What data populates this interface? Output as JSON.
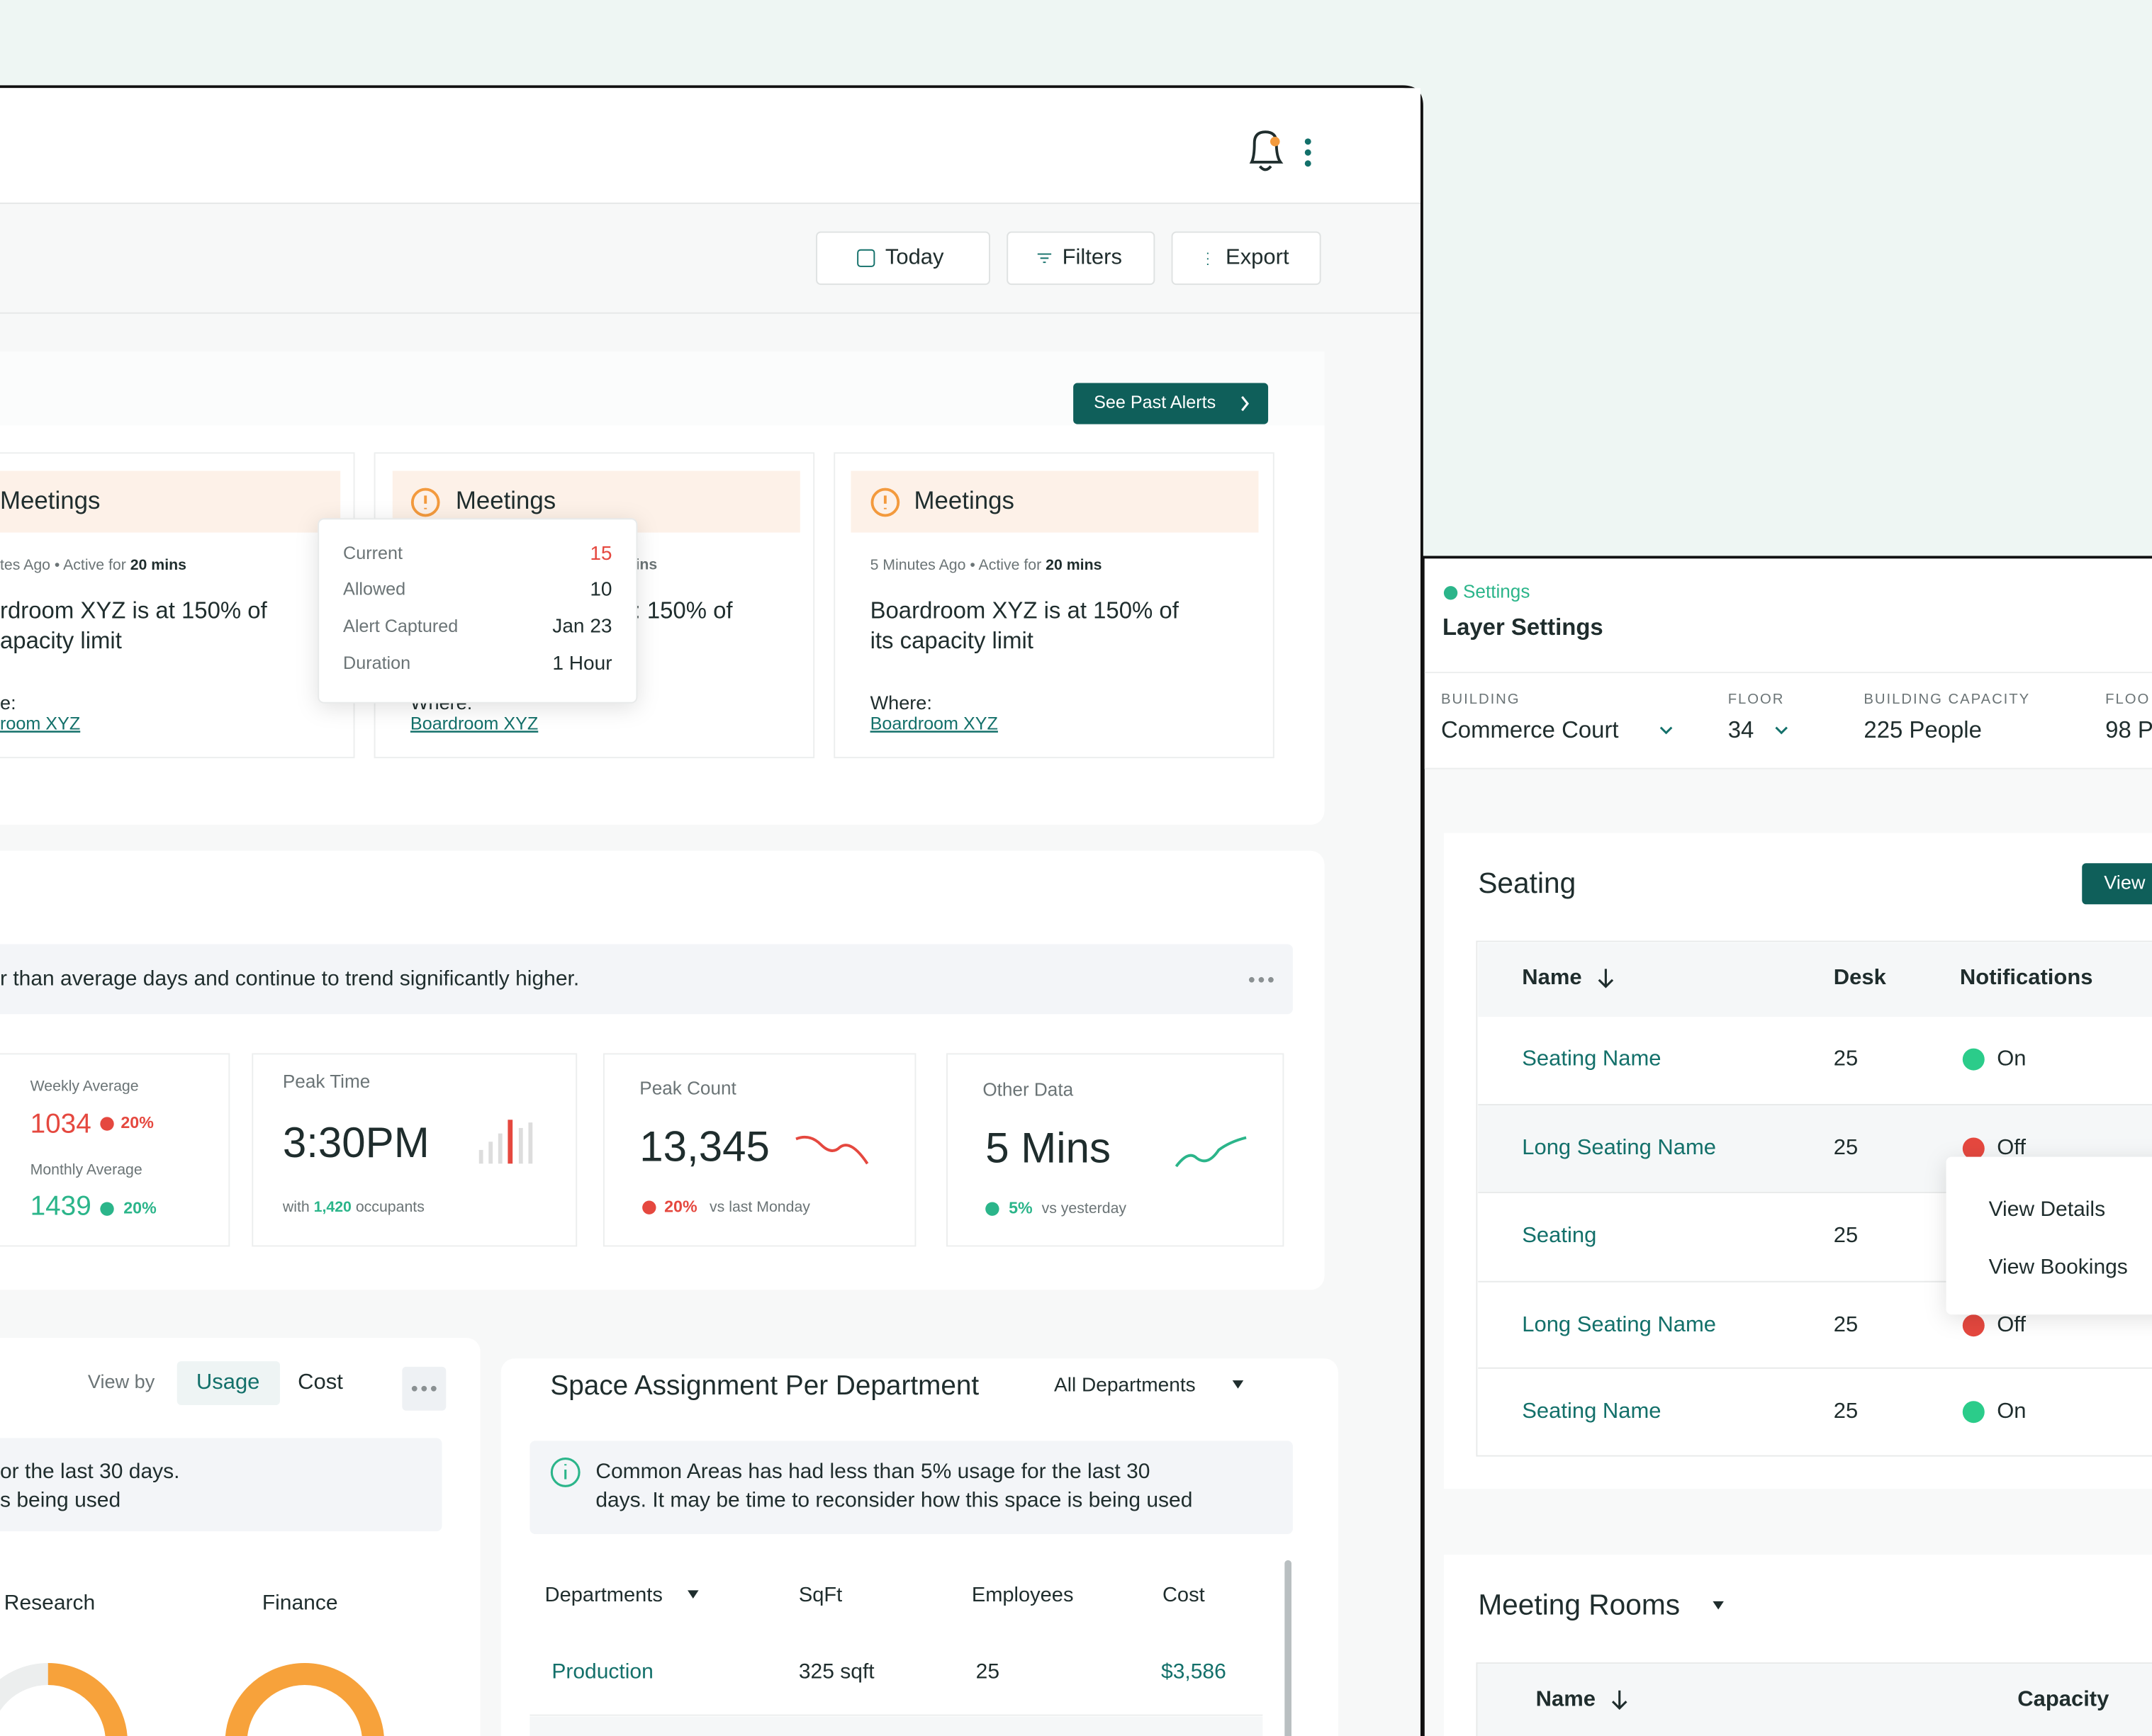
{
  "header": {
    "buttons": [
      "Today",
      "Filters",
      "Export"
    ]
  },
  "alerts": {
    "button": "See Past Alerts",
    "cards": [
      {
        "title": "Meetings",
        "meta": "tes Ago • Active for",
        "duration": "20 mins",
        "message": [
          "rdroom XYZ is at 150% of",
          "apacity limit"
        ],
        "where_label": "e:",
        "where": "room XYZ"
      },
      {
        "title": "Meetings",
        "meta": "ins",
        "message": [
          ": 150% of"
        ],
        "where_label": "Where:",
        "where": "Boardroom XYZ"
      },
      {
        "title": "Meetings",
        "meta": "5 Minutes Ago • Active for",
        "duration": "20 mins",
        "message": [
          "Boardroom XYZ is at 150% of",
          "its capacity limit"
        ],
        "where_label": "Where:",
        "where": "Boardroom XYZ"
      }
    ],
    "tooltip": [
      {
        "label": "Current",
        "value": "15"
      },
      {
        "label": "Allowed",
        "value": "10"
      },
      {
        "label": "Alert Captured",
        "value": "Jan 23"
      },
      {
        "label": "Duration",
        "value": "1 Hour"
      }
    ]
  },
  "insight": {
    "text": "r than average days and continue to trend significantly higher."
  },
  "stats": {
    "averages": [
      {
        "label": "Weekly Average",
        "value": "1034",
        "change": "20%"
      },
      {
        "label": "Monthly Average",
        "value": "1439",
        "change": "20%"
      }
    ],
    "peak_time": {
      "label": "Peak Time",
      "value": "3:30PM",
      "note_prefix": "with",
      "note_value": "1,420",
      "note_suffix": "occupants"
    },
    "peak_count": {
      "label": "Peak Count",
      "value": "13,345",
      "change": "20%",
      "note": "vs last Monday"
    },
    "other": {
      "label": "Other Data",
      "value": "5 Mins",
      "change": "5%",
      "note": "vs yesterday"
    }
  },
  "usage": {
    "view_by": "View by",
    "tabs": [
      "Usage",
      "Cost"
    ],
    "message": [
      "or the last 30 days.",
      "s being used"
    ],
    "donuts": [
      "Research",
      "Finance"
    ]
  },
  "space": {
    "title": "Space Assignment Per Department",
    "filter": "All Departments",
    "info": [
      "Common Areas has had less than 5% usage for the last 30",
      "days. It may be time to reconsider how this space is being used"
    ],
    "columns": [
      "Departments",
      "SqFt",
      "Employees",
      "Cost"
    ],
    "rows": [
      [
        "Production",
        "325 sqft",
        "25",
        "$3,586"
      ]
    ]
  },
  "settings": {
    "breadcrumb": "Settings",
    "title": "Layer Settings",
    "fields": [
      {
        "label": "BUILDING",
        "value": "Commerce Court"
      },
      {
        "label": "FLOOR",
        "value": "34"
      },
      {
        "label": "BUILDING CAPACITY",
        "value": "225 People"
      },
      {
        "label": "FLOO",
        "value": "98 P"
      }
    ],
    "seating": {
      "title": "Seating",
      "button": "View",
      "columns": [
        "Name",
        "Desk",
        "Notifications"
      ],
      "rows": [
        {
          "name": "Seating Name",
          "desk": "25",
          "status": "On"
        },
        {
          "name": "Long Seating Name",
          "desk": "25",
          "status": "Off"
        },
        {
          "name": "Seating",
          "desk": "25"
        },
        {
          "name": "Long Seating Name",
          "desk": "25",
          "status": "Off"
        },
        {
          "name": "Seating Name",
          "desk": "25",
          "status": "On"
        }
      ],
      "menu": [
        "View Details",
        "View Bookings"
      ]
    },
    "meeting_rooms": {
      "title": "Meeting Rooms",
      "columns": [
        "Name",
        "Capacity"
      ]
    }
  }
}
